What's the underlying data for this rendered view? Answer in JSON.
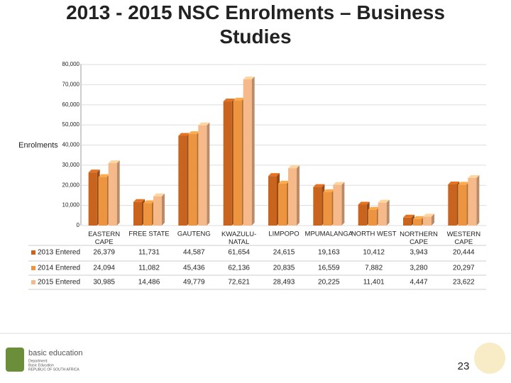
{
  "chart_data": {
    "type": "bar",
    "title": "2013 - 2015 NSC Enrolments – Business Studies",
    "y_label": "Enrolments",
    "categories": [
      "EASTERN CAPE",
      "FREE STATE",
      "GAUTENG",
      "KWAZULU-NATAL",
      "LIMPOPO",
      "MPUMALANGA",
      "NORTH WEST",
      "NORTHERN CAPE",
      "WESTERN CAPE"
    ],
    "series": [
      {
        "name": "2013 Entered",
        "color": "#c8641e",
        "values": [
          26379,
          11731,
          44587,
          61654,
          24615,
          19163,
          10412,
          3943,
          20444
        ],
        "value_labels": [
          "26,379",
          "11,731",
          "44,587",
          "61,654",
          "24,615",
          "19,163",
          "10,412",
          "3,943",
          "20,444"
        ]
      },
      {
        "name": "2014 Entered",
        "color": "#ec9440",
        "values": [
          24094,
          11082,
          45436,
          62136,
          20835,
          16559,
          7882,
          3280,
          20297
        ],
        "value_labels": [
          "24,094",
          "11,082",
          "45,436",
          "62,136",
          "20,835",
          "16,559",
          "7,882",
          "3,280",
          "20,297"
        ]
      },
      {
        "name": "2015 Entered",
        "color": "#f6b98a",
        "values": [
          30985,
          14486,
          49779,
          72621,
          28493,
          20225,
          11401,
          4447,
          23622
        ],
        "value_labels": [
          "30,985",
          "14,486",
          "49,779",
          "72,621",
          "28,493",
          "20,225",
          "11,401",
          "4,447",
          "23,622"
        ]
      }
    ],
    "ylim": [
      0,
      80000
    ],
    "yticks": [
      0,
      {
        "value": 10000,
        "label": "10,000"
      },
      {
        "value": 20000,
        "label": "20,000"
      },
      {
        "value": 30000,
        "label": "30,000"
      },
      {
        "value": 40000,
        "label": "40,000"
      },
      {
        "value": 50000,
        "label": "50,000"
      },
      {
        "value": 60000,
        "label": "60,000"
      },
      {
        "value": 70000,
        "label": "70,000"
      },
      {
        "value": 80000,
        "label": "80,000"
      }
    ],
    "grid": true
  },
  "footer": {
    "logo_title": "basic education",
    "logo_line1": "Department:",
    "logo_line2": "Basic Education",
    "logo_line3": "REPUBLIC OF SOUTH AFRICA",
    "page_number": "23"
  }
}
